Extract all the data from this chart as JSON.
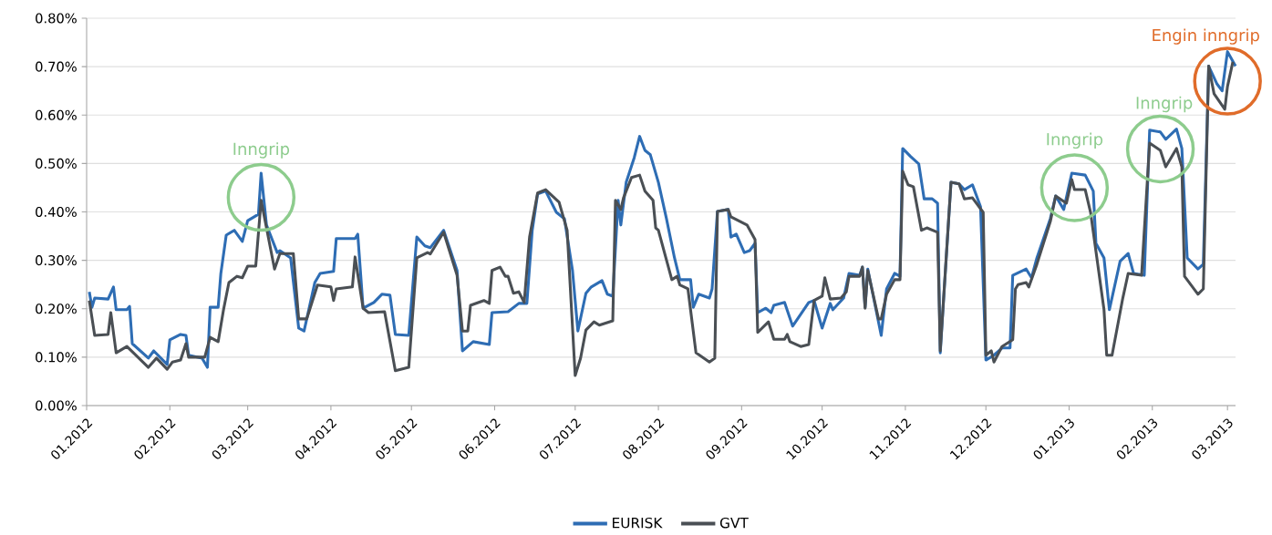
{
  "chart_data": {
    "type": "line",
    "xlim": [
      "2012-01-01",
      "2013-03-04"
    ],
    "ylim": [
      0,
      0.8
    ],
    "xticks": [
      {
        "value": "2012-01-01",
        "label": "01.2012"
      },
      {
        "value": "2012-02-01",
        "label": "02.2012"
      },
      {
        "value": "2012-03-01",
        "label": "03.2012"
      },
      {
        "value": "2012-04-01",
        "label": "04.2012"
      },
      {
        "value": "2012-05-01",
        "label": "05.2012"
      },
      {
        "value": "2012-06-01",
        "label": "06.2012"
      },
      {
        "value": "2012-07-01",
        "label": "07.2012"
      },
      {
        "value": "2012-08-01",
        "label": "08.2012"
      },
      {
        "value": "2012-09-01",
        "label": "09.2012"
      },
      {
        "value": "2012-10-01",
        "label": "10.2012"
      },
      {
        "value": "2012-11-01",
        "label": "11.2012"
      },
      {
        "value": "2012-12-01",
        "label": "12.2012"
      },
      {
        "value": "2013-01-01",
        "label": "01.2013"
      },
      {
        "value": "2013-02-01",
        "label": "02.2013"
      },
      {
        "value": "2013-03-01",
        "label": "03.2013"
      }
    ],
    "yticks": [
      {
        "value": 0,
        "label": "0.00%"
      },
      {
        "value": 0.1,
        "label": "0.10%"
      },
      {
        "value": 0.2,
        "label": "0.20%"
      },
      {
        "value": 0.3,
        "label": "0.30%"
      },
      {
        "value": 0.4,
        "label": "0.40%"
      },
      {
        "value": 0.5,
        "label": "0.50%"
      },
      {
        "value": 0.6,
        "label": "0.60%"
      },
      {
        "value": 0.7,
        "label": "0.70%"
      },
      {
        "value": 0.8,
        "label": "0.80%"
      }
    ],
    "grid": "y",
    "legend": "bottom",
    "series": [
      {
        "name": "EURISK",
        "color": "#2e6db4",
        "x": [
          "2012-01-02",
          "2012-01-03",
          "2012-01-04",
          "2012-01-09",
          "2012-01-11",
          "2012-01-12",
          "2012-01-16",
          "2012-01-17",
          "2012-01-18",
          "2012-01-24",
          "2012-01-26",
          "2012-01-31",
          "2012-02-01",
          "2012-02-05",
          "2012-02-07",
          "2012-02-08",
          "2012-02-13",
          "2012-02-15",
          "2012-02-16",
          "2012-02-19",
          "2012-02-20",
          "2012-02-22",
          "2012-02-25",
          "2012-02-28",
          "2012-03-01",
          "2012-03-05",
          "2012-03-06",
          "2012-03-08",
          "2012-03-12",
          "2012-03-13",
          "2012-03-17",
          "2012-03-20",
          "2012-03-22",
          "2012-03-26",
          "2012-03-28",
          "2012-04-02",
          "2012-04-03",
          "2012-04-10",
          "2012-04-11",
          "2012-04-13",
          "2012-04-17",
          "2012-04-20",
          "2012-04-23",
          "2012-04-25",
          "2012-04-30",
          "2012-05-03",
          "2012-05-06",
          "2012-05-08",
          "2012-05-13",
          "2012-05-18",
          "2012-05-20",
          "2012-05-24",
          "2012-05-30",
          "2012-05-31",
          "2012-06-06",
          "2012-06-10",
          "2012-06-13",
          "2012-06-15",
          "2012-06-17",
          "2012-06-20",
          "2012-06-24",
          "2012-06-27",
          "2012-06-30",
          "2012-07-02",
          "2012-07-05",
          "2012-07-07",
          "2012-07-11",
          "2012-07-13",
          "2012-07-15",
          "2012-07-17",
          "2012-07-18",
          "2012-07-20",
          "2012-07-23",
          "2012-07-25",
          "2012-07-27",
          "2012-07-29",
          "2012-08-01",
          "2012-08-04",
          "2012-08-07",
          "2012-08-09",
          "2012-08-13",
          "2012-08-14",
          "2012-08-16",
          "2012-08-20",
          "2012-08-21",
          "2012-08-23",
          "2012-08-27",
          "2012-08-28",
          "2012-08-30",
          "2012-09-02",
          "2012-09-04",
          "2012-09-06",
          "2012-09-07",
          "2012-09-10",
          "2012-09-12",
          "2012-09-13",
          "2012-09-17",
          "2012-09-20",
          "2012-09-26",
          "2012-09-28",
          "2012-10-01",
          "2012-10-04",
          "2012-10-05",
          "2012-10-09",
          "2012-10-11",
          "2012-10-15",
          "2012-10-16",
          "2012-10-17",
          "2012-10-18",
          "2012-10-23",
          "2012-10-25",
          "2012-10-28",
          "2012-10-30",
          "2012-10-31",
          "2012-11-03",
          "2012-11-06",
          "2012-11-08",
          "2012-11-11",
          "2012-11-13",
          "2012-11-14",
          "2012-11-18",
          "2012-11-21",
          "2012-11-23",
          "2012-11-26",
          "2012-11-29",
          "2012-12-01",
          "2012-12-04",
          "2012-12-07",
          "2012-12-10",
          "2012-12-11",
          "2012-12-16",
          "2012-12-18",
          "2012-12-20",
          "2012-12-25",
          "2012-12-27",
          "2012-12-30",
          "2013-01-02",
          "2013-01-07",
          "2013-01-10",
          "2013-01-11",
          "2013-01-14",
          "2013-01-16",
          "2013-01-20",
          "2013-01-23",
          "2013-01-25",
          "2013-01-29",
          "2013-01-31",
          "2013-02-04",
          "2013-02-06",
          "2013-02-10",
          "2013-02-12",
          "2013-02-14",
          "2013-02-18",
          "2013-02-20",
          "2013-02-22",
          "2013-02-25",
          "2013-02-27",
          "2013-03-01",
          "2013-03-04"
        ],
        "values": [
          0.235,
          0.203,
          0.222,
          0.22,
          0.245,
          0.198,
          0.198,
          0.205,
          0.128,
          0.098,
          0.113,
          0.085,
          0.136,
          0.147,
          0.145,
          0.104,
          0.098,
          0.079,
          0.203,
          0.203,
          0.273,
          0.352,
          0.362,
          0.339,
          0.382,
          0.395,
          0.48,
          0.373,
          0.316,
          0.32,
          0.305,
          0.16,
          0.154,
          0.254,
          0.273,
          0.277,
          0.345,
          0.345,
          0.354,
          0.201,
          0.213,
          0.23,
          0.228,
          0.147,
          0.145,
          0.348,
          0.33,
          0.326,
          0.362,
          0.279,
          0.113,
          0.132,
          0.126,
          0.192,
          0.194,
          0.211,
          0.211,
          0.362,
          0.437,
          0.443,
          0.399,
          0.386,
          0.279,
          0.154,
          0.232,
          0.245,
          0.258,
          0.23,
          0.226,
          0.424,
          0.373,
          0.461,
          0.512,
          0.556,
          0.527,
          0.518,
          0.461,
          0.386,
          0.305,
          0.26,
          0.26,
          0.203,
          0.23,
          0.222,
          0.241,
          0.401,
          0.405,
          0.348,
          0.354,
          0.316,
          0.32,
          0.335,
          0.192,
          0.201,
          0.192,
          0.207,
          0.213,
          0.164,
          0.213,
          0.217,
          0.16,
          0.211,
          0.198,
          0.222,
          0.273,
          0.269,
          0.286,
          0.203,
          0.282,
          0.145,
          0.241,
          0.273,
          0.267,
          0.531,
          0.514,
          0.499,
          0.427,
          0.427,
          0.418,
          0.109,
          0.461,
          0.458,
          0.446,
          0.456,
          0.411,
          0.094,
          0.104,
          0.119,
          0.119,
          0.269,
          0.282,
          0.264,
          0.305,
          0.386,
          0.433,
          0.405,
          0.48,
          0.476,
          0.443,
          0.335,
          0.305,
          0.198,
          0.298,
          0.314,
          0.273,
          0.269,
          0.569,
          0.565,
          0.55,
          0.571,
          0.531,
          0.305,
          0.282,
          0.292,
          0.701,
          0.665,
          0.65,
          0.731,
          0.701
        ]
      },
      {
        "name": "GVT",
        "color": "#4a4f54",
        "x": [
          "2012-01-02",
          "2012-01-04",
          "2012-01-09",
          "2012-01-10",
          "2012-01-12",
          "2012-01-16",
          "2012-01-24",
          "2012-01-27",
          "2012-01-31",
          "2012-02-02",
          "2012-02-05",
          "2012-02-07",
          "2012-02-08",
          "2012-02-14",
          "2012-02-16",
          "2012-02-19",
          "2012-02-21",
          "2012-02-23",
          "2012-02-26",
          "2012-02-28",
          "2012-03-01",
          "2012-03-04",
          "2012-03-06",
          "2012-03-11",
          "2012-03-13",
          "2012-03-18",
          "2012-03-20",
          "2012-03-23",
          "2012-03-27",
          "2012-04-01",
          "2012-04-02",
          "2012-04-03",
          "2012-04-09",
          "2012-04-10",
          "2012-04-13",
          "2012-04-15",
          "2012-04-21",
          "2012-04-25",
          "2012-04-30",
          "2012-05-03",
          "2012-05-07",
          "2012-05-08",
          "2012-05-13",
          "2012-05-18",
          "2012-05-20",
          "2012-05-22",
          "2012-05-23",
          "2012-05-28",
          "2012-05-30",
          "2012-05-31",
          "2012-06-03",
          "2012-06-05",
          "2012-06-06",
          "2012-06-08",
          "2012-06-10",
          "2012-06-12",
          "2012-06-14",
          "2012-06-17",
          "2012-06-20",
          "2012-06-25",
          "2012-06-28",
          "2012-07-01",
          "2012-07-03",
          "2012-07-05",
          "2012-07-08",
          "2012-07-10",
          "2012-07-15",
          "2012-07-16",
          "2012-07-18",
          "2012-07-19",
          "2012-07-22",
          "2012-07-25",
          "2012-07-27",
          "2012-07-30",
          "2012-07-31",
          "2012-08-01",
          "2012-08-06",
          "2012-08-08",
          "2012-08-09",
          "2012-08-12",
          "2012-08-15",
          "2012-08-20",
          "2012-08-22",
          "2012-08-23",
          "2012-08-27",
          "2012-08-28",
          "2012-09-03",
          "2012-09-06",
          "2012-09-07",
          "2012-09-11",
          "2012-09-13",
          "2012-09-17",
          "2012-09-18",
          "2012-09-19",
          "2012-09-23",
          "2012-09-26",
          "2012-09-28",
          "2012-10-01",
          "2012-10-02",
          "2012-10-04",
          "2012-10-08",
          "2012-10-10",
          "2012-10-11",
          "2012-10-15",
          "2012-10-16",
          "2012-10-17",
          "2012-10-18",
          "2012-10-22",
          "2012-10-23",
          "2012-10-25",
          "2012-10-28",
          "2012-10-30",
          "2012-10-31",
          "2012-11-02",
          "2012-11-04",
          "2012-11-07",
          "2012-11-09",
          "2012-11-13",
          "2012-11-14",
          "2012-11-18",
          "2012-11-21",
          "2012-11-23",
          "2012-11-26",
          "2012-11-30",
          "2012-12-01",
          "2012-12-03",
          "2012-12-04",
          "2012-12-07",
          "2012-12-11",
          "2012-12-12",
          "2012-12-13",
          "2012-12-16",
          "2012-12-17",
          "2012-12-20",
          "2012-12-25",
          "2012-12-27",
          "2012-12-31",
          "2013-01-02",
          "2013-01-03",
          "2013-01-07",
          "2013-01-09",
          "2013-01-14",
          "2013-01-15",
          "2013-01-17",
          "2013-01-21",
          "2013-01-23",
          "2013-01-28",
          "2013-01-31",
          "2013-02-04",
          "2013-02-06",
          "2013-02-10",
          "2013-02-12",
          "2013-02-13",
          "2013-02-18",
          "2013-02-20",
          "2013-02-22",
          "2013-02-24",
          "2013-02-28",
          "2013-03-01",
          "2013-03-03"
        ],
        "values": [
          0.217,
          0.145,
          0.147,
          0.192,
          0.109,
          0.122,
          0.079,
          0.098,
          0.075,
          0.09,
          0.094,
          0.128,
          0.1,
          0.1,
          0.141,
          0.132,
          0.198,
          0.254,
          0.267,
          0.264,
          0.288,
          0.288,
          0.424,
          0.282,
          0.314,
          0.314,
          0.179,
          0.179,
          0.249,
          0.245,
          0.217,
          0.241,
          0.245,
          0.307,
          0.201,
          0.192,
          0.194,
          0.072,
          0.079,
          0.305,
          0.316,
          0.313,
          0.358,
          0.269,
          0.154,
          0.154,
          0.207,
          0.217,
          0.211,
          0.279,
          0.286,
          0.267,
          0.267,
          0.232,
          0.235,
          0.213,
          0.348,
          0.439,
          0.446,
          0.42,
          0.362,
          0.062,
          0.098,
          0.156,
          0.173,
          0.166,
          0.175,
          0.424,
          0.405,
          0.429,
          0.471,
          0.476,
          0.443,
          0.424,
          0.367,
          0.362,
          0.26,
          0.267,
          0.249,
          0.241,
          0.109,
          0.09,
          0.098,
          0.401,
          0.405,
          0.39,
          0.373,
          0.343,
          0.151,
          0.173,
          0.137,
          0.137,
          0.147,
          0.132,
          0.122,
          0.126,
          0.217,
          0.226,
          0.264,
          0.22,
          0.222,
          0.235,
          0.267,
          0.267,
          0.286,
          0.201,
          0.279,
          0.179,
          0.179,
          0.23,
          0.26,
          0.26,
          0.484,
          0.456,
          0.452,
          0.362,
          0.367,
          0.358,
          0.113,
          0.461,
          0.458,
          0.427,
          0.429,
          0.399,
          0.104,
          0.113,
          0.09,
          0.122,
          0.136,
          0.241,
          0.25,
          0.254,
          0.245,
          0.292,
          0.38,
          0.433,
          0.418,
          0.467,
          0.446,
          0.446,
          0.399,
          0.198,
          0.104,
          0.104,
          0.222,
          0.273,
          0.269,
          0.542,
          0.527,
          0.493,
          0.531,
          0.493,
          0.267,
          0.23,
          0.241,
          0.701,
          0.644,
          0.612,
          0.659,
          0.71
        ]
      }
    ],
    "annotations": [
      {
        "text": "Inngrip",
        "x": "2012-03-06",
        "y": 0.43
      },
      {
        "text": "Inngrip",
        "x": "2013-01-03",
        "y": 0.45
      },
      {
        "text": "Inngrip",
        "x": "2013-02-04",
        "y": 0.53
      },
      {
        "text": "Engin inngrip",
        "x": "2013-03-01",
        "y": 0.67
      }
    ]
  }
}
